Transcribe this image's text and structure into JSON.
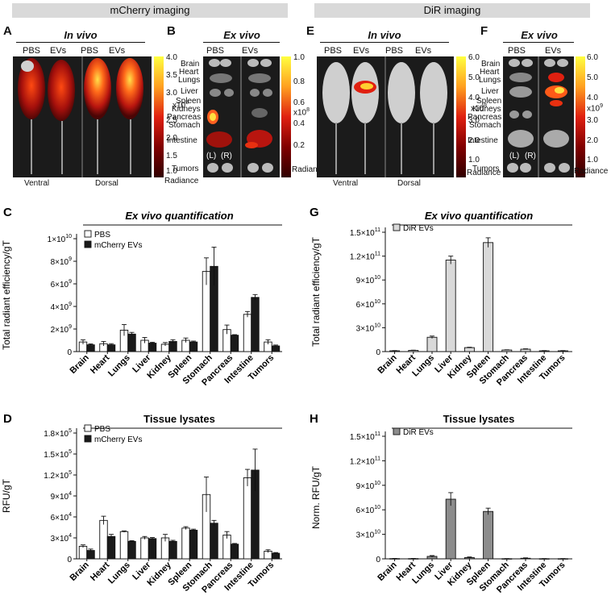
{
  "banners": {
    "left": "mCherry imaging",
    "right": "DiR imaging"
  },
  "panels": {
    "A": {
      "label": "A",
      "title": "In vivo",
      "groups": [
        "PBS",
        "EVs",
        "PBS",
        "EVs"
      ],
      "views": [
        "Ventral",
        "Dorsal"
      ]
    },
    "B": {
      "label": "B",
      "title": "Ex vivo",
      "groups": [
        "PBS",
        "EVs"
      ],
      "organs": [
        "Brain",
        "Heart",
        "Lungs",
        "Liver",
        "Spleen",
        "Kidneys",
        "Pancreas",
        "Stomach",
        "Intestine",
        "Tumors"
      ],
      "tumor_sides": [
        "(L)",
        "(R)"
      ]
    },
    "E": {
      "label": "E",
      "title": "In vivo",
      "groups": [
        "PBS",
        "EVs",
        "PBS",
        "EVs"
      ],
      "views": [
        "Ventral",
        "Dorsal"
      ]
    },
    "F": {
      "label": "F",
      "title": "Ex vivo",
      "groups": [
        "PBS",
        "EVs"
      ],
      "organs": [
        "Brain",
        "Heart",
        "Lungs",
        "Liver",
        "Spleen",
        "Kidneys",
        "Pancreas",
        "Stomach",
        "Intestine",
        "Tumors"
      ],
      "tumor_sides": [
        "(L)",
        "(R)"
      ]
    }
  },
  "colorbars": {
    "AB_A": {
      "ticks": [
        "4.0",
        "3.5",
        "3.0",
        "2.5",
        "2.0",
        "1.5",
        "1.0"
      ],
      "scale": "x10",
      "exp": "8",
      "label": "Radiance"
    },
    "AB_B": {
      "ticks": [
        "1.0",
        "0.8",
        "0.6",
        "0.4",
        "0.2"
      ],
      "scale": "x10",
      "exp": "8",
      "label": "Radiance"
    },
    "E": {
      "ticks": [
        "6.0",
        "5.0",
        "4.0",
        "3.0",
        "2.0",
        "1.0"
      ],
      "scale": "x10",
      "exp": "8",
      "label": "Radiance"
    },
    "F": {
      "ticks": [
        "6.0",
        "5.0",
        "4.0",
        "3.0",
        "2.0",
        "1.0"
      ],
      "scale": "x10",
      "exp": "9",
      "label": "Radiance"
    }
  },
  "colors": {
    "pbs_bar": "#ffffff",
    "mcherry_bar": "#1a1a1a",
    "dir_light": "#d9d9d9",
    "dir_dark": "#8c8c8c",
    "banner": "#d9d9d9"
  },
  "chart_data": [
    {
      "id": "C",
      "label": "C",
      "type": "bar",
      "title": "Ex vivo quantification",
      "title_italic": true,
      "ylabel": "Total radiant efficiency/gT",
      "ylim": [
        0,
        10000000000
      ],
      "yticks": [
        {
          "v": 0,
          "m": "0",
          "e": ""
        },
        {
          "v": 2000000000,
          "m": "2×10",
          "e": "9"
        },
        {
          "v": 4000000000,
          "m": "4×10",
          "e": "9"
        },
        {
          "v": 6000000000,
          "m": "6×10",
          "e": "9"
        },
        {
          "v": 8000000000,
          "m": "8×10",
          "e": "9"
        },
        {
          "v": 10000000000,
          "m": "1×10",
          "e": "10"
        }
      ],
      "categories": [
        "Brain",
        "Heart",
        "Lungs",
        "Liver",
        "Kidney",
        "Spleen",
        "Stomach",
        "Pancreas",
        "Intestine",
        "Tumors"
      ],
      "series": [
        {
          "name": "PBS",
          "fill": "#ffffff",
          "values": [
            850000000,
            700000000,
            1900000000,
            1000000000,
            650000000,
            1000000000,
            7100000000,
            1950000000,
            3300000000,
            850000000
          ],
          "errors": [
            200000000,
            200000000,
            500000000,
            250000000,
            150000000,
            200000000,
            1200000000,
            400000000,
            250000000,
            200000000
          ]
        },
        {
          "name": "mCherry EVs",
          "fill": "#1a1a1a",
          "values": [
            600000000,
            600000000,
            1550000000,
            750000000,
            900000000,
            850000000,
            7550000000,
            1450000000,
            4800000000,
            500000000
          ],
          "errors": [
            80000000,
            100000000,
            150000000,
            80000000,
            150000000,
            80000000,
            1700000000,
            50000000,
            250000000,
            80000000
          ]
        }
      ]
    },
    {
      "id": "D",
      "label": "D",
      "type": "bar",
      "title": "Tissue lysates",
      "title_italic": false,
      "ylabel": "RFU/gT",
      "ylim": [
        0,
        180000
      ],
      "yticks": [
        {
          "v": 0,
          "m": "0",
          "e": ""
        },
        {
          "v": 30000,
          "m": "3×10",
          "e": "4"
        },
        {
          "v": 60000,
          "m": "6×10",
          "e": "4"
        },
        {
          "v": 90000,
          "m": "9×10",
          "e": "4"
        },
        {
          "v": 120000,
          "m": "1.2×10",
          "e": "5"
        },
        {
          "v": 150000,
          "m": "1.5×10",
          "e": "5"
        },
        {
          "v": 180000,
          "m": "1.8×10",
          "e": "5"
        }
      ],
      "categories": [
        "Brain",
        "Heart",
        "Lungs",
        "Liver",
        "Kidney",
        "Spleen",
        "Stomach",
        "Pancreas",
        "Intestine",
        "Tumors"
      ],
      "series": [
        {
          "name": "PBS",
          "fill": "#ffffff",
          "values": [
            18000,
            55000,
            39000,
            30000,
            30000,
            44000,
            92000,
            34000,
            116000,
            11000
          ],
          "errors": [
            2000,
            6000,
            1000,
            2000,
            5000,
            2000,
            25000,
            5000,
            12000,
            2000
          ]
        },
        {
          "name": "mCherry EVs",
          "fill": "#1a1a1a",
          "values": [
            12000,
            32000,
            25000,
            29000,
            25000,
            41000,
            51000,
            21000,
            127000,
            8000
          ],
          "errors": [
            2000,
            3000,
            1000,
            1500,
            1500,
            1500,
            4000,
            1000,
            30000,
            1000
          ]
        }
      ]
    },
    {
      "id": "G",
      "label": "G",
      "type": "bar",
      "title": "Ex vivo quantification",
      "title_italic": true,
      "ylabel": "Total radiant efficiency/gT",
      "ylim": [
        0,
        150000000000
      ],
      "yticks": [
        {
          "v": 0,
          "m": "0",
          "e": ""
        },
        {
          "v": 30000000000,
          "m": "3×10",
          "e": "10"
        },
        {
          "v": 60000000000,
          "m": "6×10",
          "e": "10"
        },
        {
          "v": 90000000000,
          "m": "9×10",
          "e": "10"
        },
        {
          "v": 120000000000,
          "m": "1.2×10",
          "e": "11"
        },
        {
          "v": 150000000000,
          "m": "1.5×10",
          "e": "11"
        }
      ],
      "categories": [
        "Brain",
        "Heart",
        "Lungs",
        "Liver",
        "Kidney",
        "Spleen",
        "Stomach",
        "Pancreas",
        "Intestine",
        "Tumors"
      ],
      "series": [
        {
          "name": "DiR EVs",
          "fill": "#d9d9d9",
          "values": [
            1000000000,
            1500000000,
            18000000000,
            115000000000,
            5000000000,
            137000000000,
            2000000000,
            3000000000,
            1000000000,
            1000000000
          ],
          "errors": [
            300000000,
            300000000,
            1500000000,
            5000000000,
            500000000,
            6000000000,
            300000000,
            500000000,
            300000000,
            300000000
          ]
        }
      ]
    },
    {
      "id": "H",
      "label": "H",
      "type": "bar",
      "title": "Tissue lysates",
      "title_italic": false,
      "ylabel": "Norm. RFU/gT",
      "ylim": [
        0,
        150000000000
      ],
      "yticks": [
        {
          "v": 0,
          "m": "0",
          "e": ""
        },
        {
          "v": 30000000000,
          "m": "3×10",
          "e": "10"
        },
        {
          "v": 60000000000,
          "m": "6×10",
          "e": "10"
        },
        {
          "v": 90000000000,
          "m": "9×10",
          "e": "10"
        },
        {
          "v": 120000000000,
          "m": "1.2×10",
          "e": "11"
        },
        {
          "v": 150000000000,
          "m": "1.5×10",
          "e": "11"
        }
      ],
      "categories": [
        "Brain",
        "Heart",
        "Lungs",
        "Liver",
        "Kidney",
        "Spleen",
        "Stomach",
        "Pancreas",
        "Intestine",
        "Tumors"
      ],
      "series": [
        {
          "name": "DiR EVs",
          "fill": "#8c8c8c",
          "values": [
            300000000,
            300000000,
            3000000000,
            73000000000,
            1500000000,
            58000000000,
            200000000,
            700000000,
            200000000,
            200000000
          ],
          "errors": [
            200000000,
            200000000,
            1000000000,
            8000000000,
            800000000,
            4000000000,
            100000000,
            500000000,
            100000000,
            100000000
          ]
        }
      ]
    }
  ]
}
